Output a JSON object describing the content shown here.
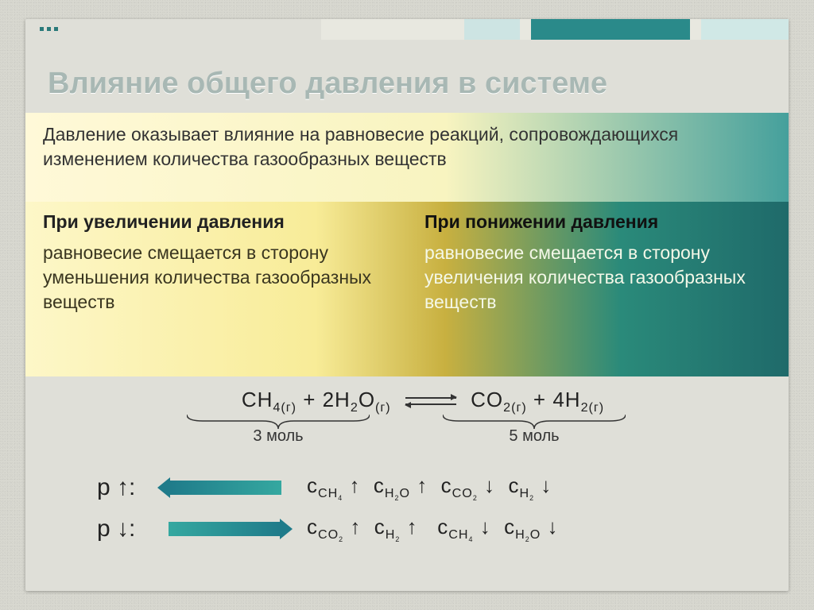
{
  "title": "Влияние общего давления в системе",
  "intro": "Давление оказывает влияние на  равновесие реакций, сопровождающихся изменением количества газообразных веществ",
  "col_left": {
    "head": "При увеличении давления",
    "body": "равновесие смещается в сторону уменьшения количества газообразных веществ"
  },
  "col_right": {
    "head": "При понижении давления",
    "body": "равновесие смещается в сторону увеличения количества газообразных веществ"
  },
  "equation": {
    "left_html": "CH<sub>4(г)</sub> + 2H<sub>2</sub>O<sub>(г)</sub>",
    "right_html": "CO<sub>2(г)</sub> + 4H<sub>2(г)</sub>",
    "left_moles": "3 моль",
    "right_moles": "5 моль"
  },
  "rows": {
    "r1": {
      "p_label": "p ↑:",
      "direction": "left",
      "conc_html": "c<sub>CH<sub class=\"sub2\">4</sub></sub> ↑&nbsp; c<sub>H<sub class=\"sub2\">2</sub>O</sub> ↑&nbsp; c<sub>CO<sub class=\"sub2\">2</sub></sub> ↓&nbsp; c<sub>H<sub class=\"sub2\">2</sub></sub> ↓"
    },
    "r2": {
      "p_label": "p ↓:",
      "direction": "right",
      "conc_html": "c<sub>CO<sub class=\"sub2\">2</sub></sub> ↑&nbsp; c<sub>H<sub class=\"sub2\">2</sub></sub> ↑&nbsp;&nbsp; c<sub>CH<sub class=\"sub2\">4</sub></sub> ↓&nbsp; c<sub>H<sub class=\"sub2\">2</sub>O</sub> ↓"
    }
  },
  "colors": {
    "title": "#a8b8b4",
    "accent_teal": "#2a8a8a",
    "arrow_grad_a": "#35a8a0",
    "arrow_grad_b": "#1f7b8a",
    "band_yellow": "#fdf7c8",
    "band_gold": "#c8b040",
    "band_teal": "#2a8a7a",
    "text_dark": "#222222",
    "text_light": "#f4f8e8",
    "background": "#dfdfd8"
  },
  "typography": {
    "title_fontsize": 38,
    "body_fontsize": 23,
    "equation_fontsize": 26,
    "p_label_fontsize": 30,
    "font_family": "Arial"
  },
  "layout": {
    "slide_width": 960,
    "slide_height": 720,
    "column_split": 0.5
  }
}
